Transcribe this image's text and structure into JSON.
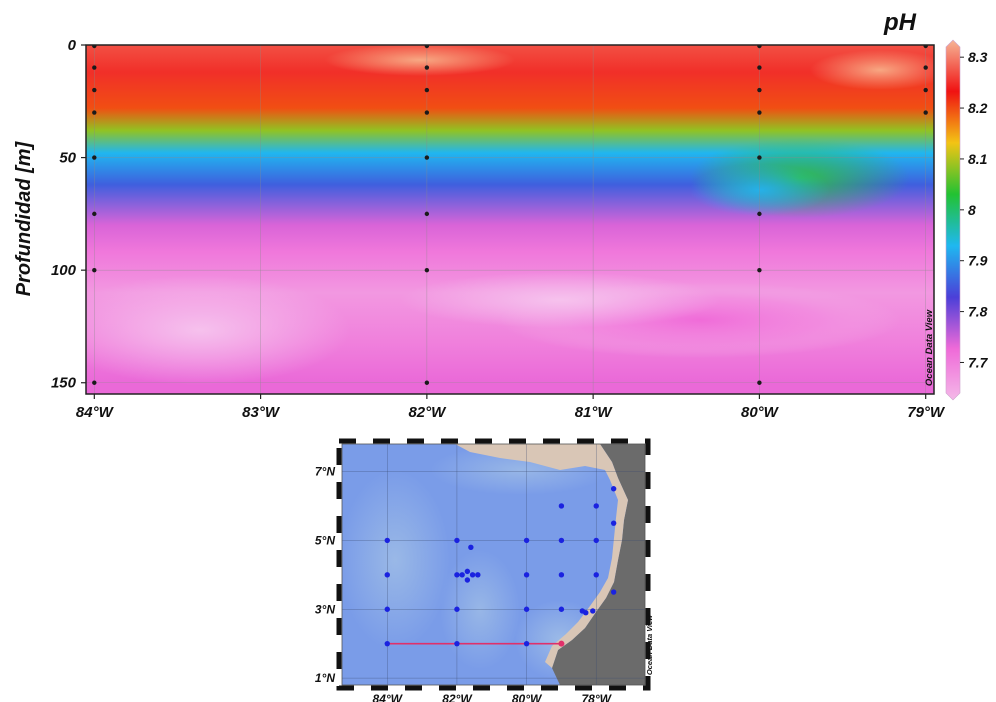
{
  "chart_data": [
    {
      "type": "heatmap",
      "title": "pH",
      "ylabel": "Profundidad [m]",
      "xlabel": "",
      "watermark": "Ocean Data View",
      "x_ticks": [
        -84,
        -83,
        -82,
        -81,
        -80,
        -79
      ],
      "x_tick_labels": [
        "84°W",
        "83°W",
        "82°W",
        "81°W",
        "80°W",
        "79°W"
      ],
      "xlim": [
        -84.05,
        -78.95
      ],
      "y_ticks": [
        0,
        50,
        100,
        150
      ],
      "y_tick_labels": [
        "0",
        "50",
        "100",
        "150"
      ],
      "ylim": [
        0,
        155
      ],
      "y_inverted": true,
      "grid": true,
      "colorbar": {
        "ticks": [
          7.7,
          7.8,
          7.9,
          8,
          8.1,
          8.2,
          8.3
        ],
        "tick_labels": [
          "7.7",
          "7.8",
          "7.9",
          "8",
          "8.1",
          "8.2",
          "8.3"
        ],
        "range": [
          7.64,
          8.32
        ],
        "colors": [
          "#f4b8e8",
          "#ef6ad8",
          "#4b3fd8",
          "#1fb8f0",
          "#22c232",
          "#f3c414",
          "#f01212",
          "#f6b596"
        ]
      },
      "layers": [
        {
          "depth": 0,
          "ph": 8.26
        },
        {
          "depth": 12,
          "ph": 8.24
        },
        {
          "depth": 28,
          "ph": 8.19
        },
        {
          "depth": 38,
          "ph": 8.08
        },
        {
          "depth": 48,
          "ph": 7.93
        },
        {
          "depth": 62,
          "ph": 7.86
        },
        {
          "depth": 80,
          "ph": 7.75
        },
        {
          "depth": 92,
          "ph": 7.72
        },
        {
          "depth": 110,
          "ph": 7.68
        },
        {
          "depth": 132,
          "ph": 7.71
        },
        {
          "depth": 150,
          "ph": 7.74
        }
      ],
      "sample_stations": [
        {
          "lon": -84,
          "depths": [
            0,
            10,
            20,
            30,
            50,
            75,
            100,
            150
          ]
        },
        {
          "lon": -82,
          "depths": [
            0,
            10,
            20,
            30,
            50,
            75,
            100,
            150
          ]
        },
        {
          "lon": -80,
          "depths": [
            0,
            10,
            20,
            30,
            50,
            75,
            100,
            150
          ]
        },
        {
          "lon": -79,
          "depths": [
            0,
            10,
            20,
            30
          ]
        }
      ]
    },
    {
      "type": "scatter",
      "title": "",
      "watermark": "Ocean Data View",
      "x_ticks": [
        -84,
        -82,
        -80,
        -78
      ],
      "x_tick_labels": [
        "84°W",
        "82°W",
        "80°W",
        "78°W"
      ],
      "y_ticks": [
        1,
        3,
        5,
        7
      ],
      "y_tick_labels": [
        "1°N",
        "3°N",
        "5°N",
        "7°N"
      ],
      "xlim": [
        -85.3,
        -76.6
      ],
      "ylim": [
        0.8,
        7.8
      ],
      "stations": [
        [
          -84,
          5
        ],
        [
          -84,
          4
        ],
        [
          -84,
          3
        ],
        [
          -84,
          2
        ],
        [
          -82,
          5
        ],
        [
          -82,
          4
        ],
        [
          -82,
          3
        ],
        [
          -82,
          2
        ],
        [
          -81.6,
          4.8
        ],
        [
          -81.7,
          4.1
        ],
        [
          -81.85,
          4
        ],
        [
          -81.55,
          4
        ],
        [
          -81.4,
          4
        ],
        [
          -81.7,
          3.85
        ],
        [
          -80,
          5
        ],
        [
          -80,
          4
        ],
        [
          -80,
          3
        ],
        [
          -80,
          2
        ],
        [
          -79,
          6
        ],
        [
          -79,
          5
        ],
        [
          -79,
          4
        ],
        [
          -79,
          3
        ],
        [
          -78,
          6
        ],
        [
          -78,
          5
        ],
        [
          -78,
          4
        ],
        [
          -78.4,
          2.95
        ],
        [
          -78.3,
          2.9
        ],
        [
          -78.1,
          2.95
        ],
        [
          -77.5,
          6.5
        ],
        [
          -77.5,
          5.5
        ],
        [
          -77.5,
          3.5
        ]
      ],
      "transect": {
        "from": [
          -84,
          2
        ],
        "to": [
          -79,
          2
        ],
        "color": "#e0306a"
      }
    }
  ]
}
